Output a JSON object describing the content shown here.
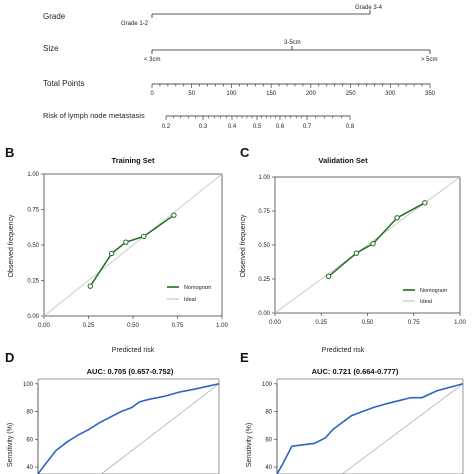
{
  "chart_data": [
    {
      "type": "nomogram",
      "rows": [
        {
          "label": "Grade",
          "levels": [
            "Grade 1-2",
            "Grade 3-4"
          ]
        },
        {
          "label": "Size",
          "levels": [
            "< 3cm",
            "3-5cm",
            "> 5cm"
          ]
        },
        {
          "label": "Total Points",
          "ticks": [
            "0",
            "50",
            "100",
            "150",
            "200",
            "250",
            "300",
            "350"
          ]
        },
        {
          "label": "Risk of lymph node metastasis",
          "ticks": [
            "0.2",
            "0.3",
            "0.4",
            "0.5",
            "0.6",
            "0.7",
            "0.8"
          ]
        }
      ]
    },
    {
      "panel": "B",
      "type": "line",
      "title": "Training Set",
      "xlabel": "Predicted risk",
      "ylabel": "Observed frequency",
      "xlim": [
        0,
        1
      ],
      "ylim": [
        0,
        1
      ],
      "ticks": [
        "0.00",
        "0.25",
        "0.50",
        "0.75",
        "1.00"
      ],
      "series": [
        {
          "name": "Nomogram",
          "color": "#1f6e1f",
          "x": [
            0.26,
            0.38,
            0.46,
            0.56,
            0.73
          ],
          "y": [
            0.21,
            0.44,
            0.52,
            0.56,
            0.71
          ]
        },
        {
          "name": "Ideal",
          "color": "#c8c8c8",
          "x": [
            0,
            1
          ],
          "y": [
            0,
            1
          ]
        }
      ],
      "legend": "bottom-right"
    },
    {
      "panel": "C",
      "type": "line",
      "title": "Validation Set",
      "xlabel": "Predicted risk",
      "ylabel": "Observed frequency",
      "xlim": [
        0,
        1
      ],
      "ylim": [
        0,
        1
      ],
      "ticks": [
        "0.00",
        "0.25",
        "0.50",
        "0.75",
        "1.00"
      ],
      "series": [
        {
          "name": "Nomogram",
          "color": "#1f6e1f",
          "x": [
            0.29,
            0.44,
            0.53,
            0.66,
            0.81
          ],
          "y": [
            0.27,
            0.44,
            0.51,
            0.7,
            0.81
          ]
        },
        {
          "name": "Ideal",
          "color": "#c8c8c8",
          "x": [
            0,
            1
          ],
          "y": [
            0,
            1
          ]
        }
      ],
      "legend": "bottom-right"
    },
    {
      "panel": "D",
      "type": "line",
      "title": "AUC: 0.705 (0.657-0.752)",
      "ylabel": "Sensitivity (%)",
      "yticks": [
        "100",
        "80",
        "60",
        "40"
      ],
      "ylim": [
        35,
        102
      ],
      "series": [
        {
          "name": "",
          "color": "#2e63c2",
          "x": [
            0,
            4,
            10,
            16,
            22,
            28,
            34,
            40,
            46,
            52,
            56,
            62,
            70,
            78,
            86,
            93,
            100
          ],
          "y": [
            35,
            42,
            52,
            58,
            63,
            67,
            72,
            76,
            80,
            83,
            87,
            89,
            91,
            94,
            96,
            98,
            100
          ]
        },
        {
          "name": "",
          "color": "#b0b0b0",
          "x": [
            20,
            100
          ],
          "y": [
            20,
            100
          ]
        }
      ]
    },
    {
      "panel": "E",
      "type": "line",
      "title": "AUC: 0.721 (0.664-0.777)",
      "ylabel": "Sensitivity (%)",
      "yticks": [
        "100",
        "80",
        "60",
        "40"
      ],
      "ylim": [
        35,
        102
      ],
      "series": [
        {
          "name": "",
          "color": "#2e63c2",
          "x": [
            0,
            3,
            8,
            14,
            20,
            26,
            30,
            34,
            40,
            46,
            52,
            60,
            66,
            72,
            78,
            86,
            100
          ],
          "y": [
            35,
            42,
            55,
            56,
            57,
            61,
            67,
            71,
            77,
            80,
            83,
            86,
            88,
            90,
            90,
            95,
            100
          ]
        },
        {
          "name": "",
          "color": "#b0b0b0",
          "x": [
            20,
            100
          ],
          "y": [
            20,
            100
          ]
        }
      ]
    }
  ],
  "panel_letters": [
    "B",
    "C",
    "D",
    "E"
  ]
}
